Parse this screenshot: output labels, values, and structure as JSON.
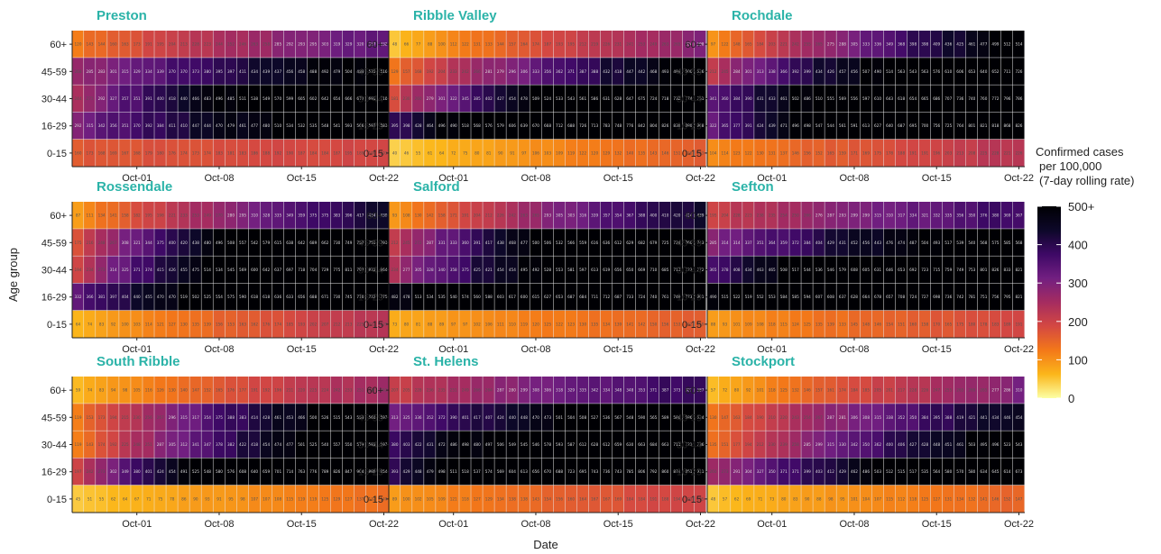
{
  "chart_data": {
    "type": "heatmap",
    "xlabel": "Date",
    "ylabel": "Age group",
    "age_groups": [
      "60+",
      "45-59",
      "30-44",
      "16-29",
      "0-15"
    ],
    "x_ticks": [
      "Oct-01",
      "Oct-08",
      "Oct-15",
      "Oct-22"
    ],
    "x_start": "2020-09-26",
    "n_days": 27,
    "color_scale": {
      "min": 0,
      "max": 500,
      "ticks": [
        "0",
        "100",
        "200",
        "300",
        "400",
        "500+"
      ],
      "colors": [
        "#fcffa4",
        "#fbb61a",
        "#f37819",
        "#d44842",
        "#a52c60",
        "#721f81",
        "#3e0966",
        "#0d0829",
        "#000004"
      ]
    },
    "legend_title": [
      "Confirmed cases",
      "per 100,000",
      "(7-day rolling rate)"
    ],
    "panels": [
      {
        "name": "Preston",
        "series": [
          {
            "age": "60+",
            "start": 125,
            "end": 340
          },
          {
            "age": "45-59",
            "start": 265,
            "end": 525
          },
          {
            "age": "30-44",
            "start": 250,
            "end": 710
          },
          {
            "age": "16-29",
            "start": 300,
            "end": 600
          },
          {
            "age": "0-15",
            "start": 165,
            "end": 195
          }
        ]
      },
      {
        "name": "Ribble Valley",
        "series": [
          {
            "age": "60+",
            "start": 50,
            "end": 290
          },
          {
            "age": "45-59",
            "start": 130,
            "end": 520
          },
          {
            "age": "30-44",
            "start": 185,
            "end": 780
          },
          {
            "age": "16-29",
            "start": 380,
            "end": 900
          },
          {
            "age": "0-15",
            "start": 40,
            "end": 160
          }
        ]
      },
      {
        "name": "Rochdale",
        "series": [
          {
            "age": "60+",
            "start": 100,
            "end": 510
          },
          {
            "age": "45-59",
            "start": 220,
            "end": 710
          },
          {
            "age": "30-44",
            "start": 330,
            "end": 800
          },
          {
            "age": "16-29",
            "start": 320,
            "end": 860
          },
          {
            "age": "0-15",
            "start": 105,
            "end": 230
          }
        ]
      },
      {
        "name": "Rossendale",
        "series": [
          {
            "age": "60+",
            "start": 90,
            "end": 440
          },
          {
            "age": "45-59",
            "start": 180,
            "end": 790
          },
          {
            "age": "30-44",
            "start": 200,
            "end": 850
          },
          {
            "age": "16-29",
            "start": 330,
            "end": 760
          },
          {
            "age": "0-15",
            "start": 65,
            "end": 230
          }
        ]
      },
      {
        "name": "Salford",
        "series": [
          {
            "age": "60+",
            "start": 90,
            "end": 440
          },
          {
            "age": "45-59",
            "start": 210,
            "end": 760
          },
          {
            "age": "30-44",
            "start": 240,
            "end": 760
          },
          {
            "age": "16-29",
            "start": 470,
            "end": 790
          },
          {
            "age": "0-15",
            "start": 75,
            "end": 160
          }
        ]
      },
      {
        "name": "Sefton",
        "series": [
          {
            "age": "60+",
            "start": 200,
            "end": 380
          },
          {
            "age": "45-59",
            "start": 290,
            "end": 580
          },
          {
            "age": "30-44",
            "start": 360,
            "end": 830
          },
          {
            "age": "16-29",
            "start": 480,
            "end": 800
          },
          {
            "age": "0-15",
            "start": 90,
            "end": 190
          }
        ]
      },
      {
        "name": "South Ribble",
        "series": [
          {
            "age": "60+",
            "start": 60,
            "end": 260
          },
          {
            "age": "45-59",
            "start": 120,
            "end": 590
          },
          {
            "age": "30-44",
            "start": 115,
            "end": 620
          },
          {
            "age": "16-29",
            "start": 200,
            "end": 920
          },
          {
            "age": "0-15",
            "start": 45,
            "end": 140
          }
        ]
      },
      {
        "name": "St. Helens",
        "series": [
          {
            "age": "60+",
            "start": 200,
            "end": 400
          },
          {
            "age": "45-59",
            "start": 310,
            "end": 620
          },
          {
            "age": "30-44",
            "start": 390,
            "end": 720
          },
          {
            "age": "16-29",
            "start": 390,
            "end": 880
          },
          {
            "age": "0-15",
            "start": 90,
            "end": 200
          }
        ]
      },
      {
        "name": "Stockport",
        "series": [
          {
            "age": "60+",
            "start": 55,
            "end": 300
          },
          {
            "age": "45-59",
            "start": 130,
            "end": 460
          },
          {
            "age": "30-44",
            "start": 130,
            "end": 540
          },
          {
            "age": "16-29",
            "start": 250,
            "end": 650
          },
          {
            "age": "0-15",
            "start": 50,
            "end": 150
          }
        ]
      }
    ]
  }
}
